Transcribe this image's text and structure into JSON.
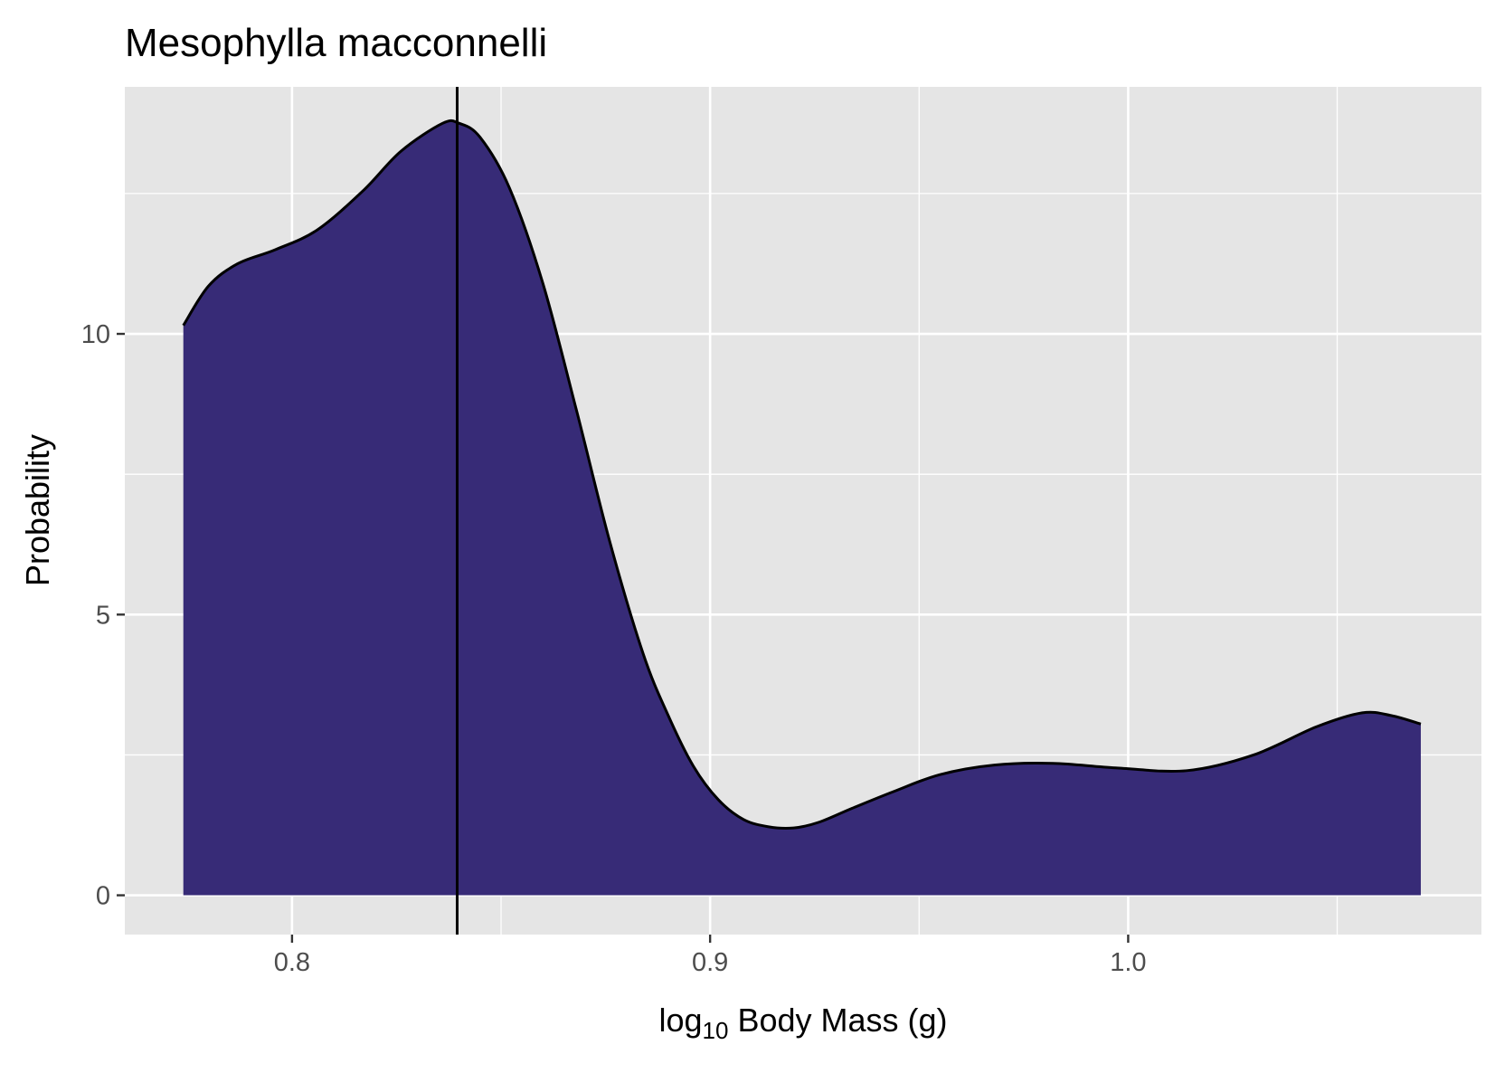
{
  "chart_data": {
    "type": "area",
    "title": "Mesophylla macconnelli",
    "xlabel": {
      "main": "log",
      "subscript": "10",
      "rest": " Body Mass (g)"
    },
    "ylabel": "Probability",
    "xlim": [
      0.76,
      1.0845
    ],
    "ylim": [
      -0.7,
      14.4
    ],
    "x_ticks": [
      0.8,
      0.9,
      1.0
    ],
    "x_tick_labels": [
      "0.8",
      "0.9",
      "1.0"
    ],
    "x_minor_ticks": [
      0.85,
      0.95,
      1.05
    ],
    "y_ticks": [
      0,
      5,
      10
    ],
    "y_tick_labels": [
      "0",
      "5",
      "10"
    ],
    "y_minor_ticks": [
      2.5,
      7.5,
      12.5
    ],
    "grid": true,
    "legend": "none",
    "series": [
      {
        "x": [
          0.774,
          0.78,
          0.787,
          0.796,
          0.806,
          0.817,
          0.826,
          0.836,
          0.84,
          0.845,
          0.852,
          0.86,
          0.868,
          0.876,
          0.884,
          0.89,
          0.896,
          0.902,
          0.908,
          0.914,
          0.92,
          0.926,
          0.934,
          0.944,
          0.955,
          0.968,
          0.982,
          0.997,
          1.014,
          1.03,
          1.045,
          1.056,
          1.063,
          1.07
        ],
        "y": [
          10.15,
          10.85,
          11.25,
          11.5,
          11.85,
          12.55,
          13.25,
          13.75,
          13.75,
          13.5,
          12.6,
          10.9,
          8.65,
          6.3,
          4.3,
          3.2,
          2.3,
          1.7,
          1.35,
          1.22,
          1.2,
          1.3,
          1.55,
          1.85,
          2.15,
          2.32,
          2.35,
          2.27,
          2.22,
          2.5,
          3.0,
          3.25,
          3.2,
          3.05
        ]
      }
    ],
    "vline_x": 0.8395,
    "colors": {
      "fill": "#372b77",
      "outline": "#000000",
      "panel_background": "#e5e5e5",
      "gridline": "#ffffff",
      "vline": "#000000"
    }
  }
}
